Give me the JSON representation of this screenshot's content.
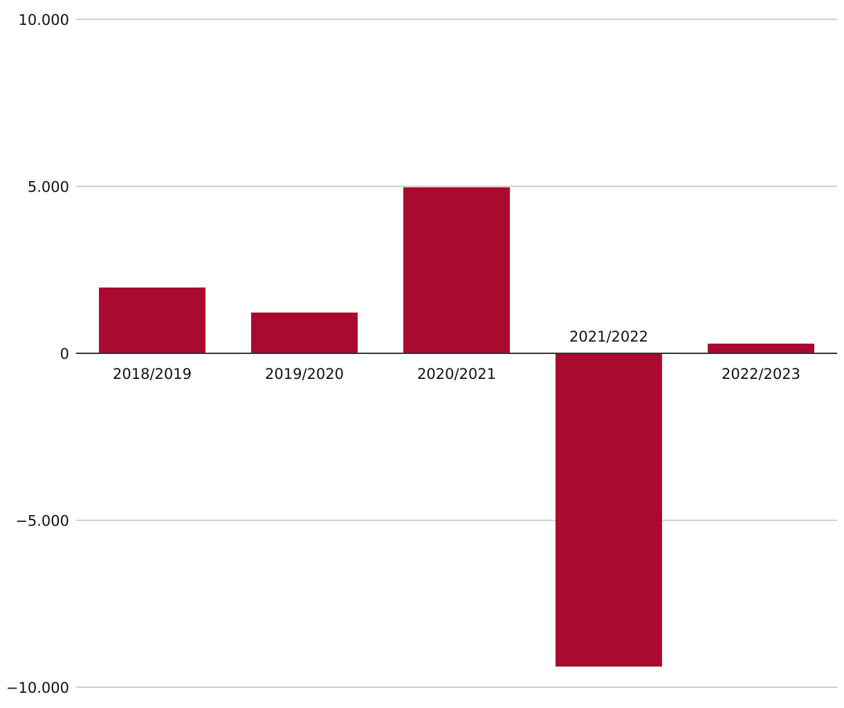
{
  "chart_data": {
    "type": "bar",
    "title": "",
    "xlabel": "",
    "ylabel": "",
    "categories": [
      "2018/2019",
      "2019/2020",
      "2020/2021",
      "2021/2022",
      "2022/2023"
    ],
    "values": [
      1970,
      1220,
      4970,
      -9380,
      290
    ],
    "ylim": [
      -10000,
      10000
    ],
    "yticks": [
      10000,
      5000,
      0,
      -5000,
      -10000
    ],
    "ytick_labels": [
      "10.000",
      "5.000",
      "0",
      "−5.000",
      "−10.000"
    ],
    "grid": true,
    "bar_color": "#a90a2f",
    "grid_color": "#c0c0c0",
    "axis_color": "#333333"
  }
}
